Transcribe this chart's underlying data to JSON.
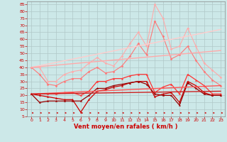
{
  "bg_color": "#cce8e8",
  "grid_color": "#b0c8c8",
  "xlabel": "Vent moyen/en rafales ( km/h )",
  "xlabel_color": "#cc0000",
  "xlabel_fontsize": 6.0,
  "xtick_color": "#cc0000",
  "ytick_color": "#cc0000",
  "xlim": [
    -0.5,
    23.5
  ],
  "ylim": [
    5,
    87
  ],
  "yticks": [
    5,
    10,
    15,
    20,
    25,
    30,
    35,
    40,
    45,
    50,
    55,
    60,
    65,
    70,
    75,
    80,
    85
  ],
  "xticks": [
    0,
    1,
    2,
    3,
    4,
    5,
    6,
    7,
    8,
    9,
    10,
    11,
    12,
    13,
    14,
    15,
    16,
    17,
    18,
    19,
    20,
    21,
    22,
    23
  ],
  "lines": [
    {
      "x": [
        0,
        1,
        2,
        3,
        4,
        5,
        6,
        7,
        8,
        9,
        10,
        11,
        12,
        13,
        14,
        15,
        16,
        17,
        18,
        19,
        20,
        21,
        22,
        23
      ],
      "y": [
        40,
        40,
        30,
        30,
        35,
        37,
        38,
        43,
        47,
        43,
        41,
        48,
        57,
        65,
        55,
        85,
        75,
        53,
        55,
        68,
        55,
        43,
        38,
        33
      ],
      "color": "#ffaaaa",
      "lw": 0.8,
      "marker": "D",
      "ms": 1.5
    },
    {
      "x": [
        0,
        1,
        2,
        3,
        4,
        5,
        6,
        7,
        8,
        9,
        10,
        11,
        12,
        13,
        14,
        15,
        16,
        17,
        18,
        19,
        20,
        21,
        22,
        23
      ],
      "y": [
        40,
        35,
        28,
        27,
        30,
        32,
        32,
        37,
        40,
        36,
        37,
        41,
        48,
        57,
        49,
        73,
        62,
        46,
        49,
        55,
        45,
        37,
        31,
        27
      ],
      "color": "#ff7777",
      "lw": 0.8,
      "marker": "D",
      "ms": 1.5
    },
    {
      "x": [
        0,
        1,
        2,
        3,
        4,
        5,
        6,
        7,
        8,
        9,
        10,
        11,
        12,
        13,
        14,
        15,
        16,
        17,
        18,
        19,
        20,
        21,
        22,
        23
      ],
      "y": [
        21,
        21,
        21,
        21,
        22,
        22,
        20,
        23,
        30,
        30,
        32,
        32,
        34,
        35,
        35,
        22,
        26,
        28,
        21,
        35,
        31,
        27,
        21,
        21
      ],
      "color": "#ff3333",
      "lw": 0.9,
      "marker": "^",
      "ms": 1.5
    },
    {
      "x": [
        0,
        1,
        2,
        3,
        4,
        5,
        6,
        7,
        8,
        9,
        10,
        11,
        12,
        13,
        14,
        15,
        16,
        17,
        18,
        19,
        20,
        21,
        22,
        23
      ],
      "y": [
        21,
        20,
        19,
        18,
        17,
        17,
        8,
        17,
        23,
        24,
        26,
        27,
        29,
        30,
        30,
        19,
        21,
        22,
        15,
        30,
        27,
        22,
        20,
        20
      ],
      "color": "#cc0000",
      "lw": 0.9,
      "marker": "^",
      "ms": 1.5
    },
    {
      "x": [
        0,
        1,
        2,
        3,
        4,
        5,
        6,
        7,
        8,
        9,
        10,
        11,
        12,
        13,
        14,
        15,
        16,
        17,
        18,
        19,
        20,
        21,
        22,
        23
      ],
      "y": [
        21,
        15,
        16,
        16,
        16,
        16,
        16,
        20,
        25,
        25,
        27,
        28,
        29,
        30,
        28,
        21,
        20,
        20,
        13,
        29,
        25,
        21,
        20,
        20
      ],
      "color": "#990000",
      "lw": 0.9,
      "marker": "^",
      "ms": 1.5
    },
    {
      "x": [
        0,
        23
      ],
      "y": [
        40,
        67
      ],
      "color": "#ffcccc",
      "lw": 1.0,
      "marker": null,
      "ms": 0
    },
    {
      "x": [
        0,
        23
      ],
      "y": [
        40,
        52
      ],
      "color": "#ffaaaa",
      "lw": 1.0,
      "marker": null,
      "ms": 0
    },
    {
      "x": [
        0,
        23
      ],
      "y": [
        21,
        27
      ],
      "color": "#ff5555",
      "lw": 1.0,
      "marker": null,
      "ms": 0
    },
    {
      "x": [
        0,
        23
      ],
      "y": [
        21,
        23
      ],
      "color": "#cc2222",
      "lw": 1.0,
      "marker": null,
      "ms": 0
    }
  ]
}
